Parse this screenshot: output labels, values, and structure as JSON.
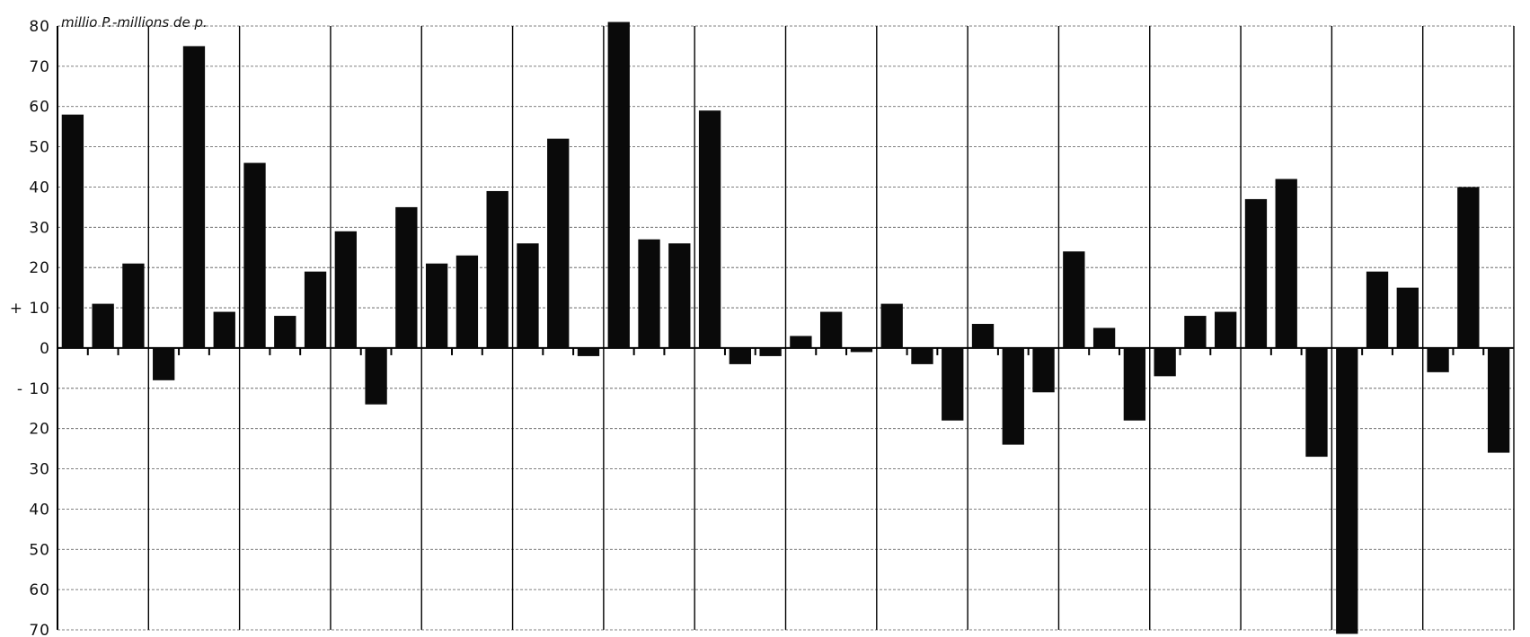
{
  "chart_data": {
    "type": "bar",
    "unit_label": "millio P.-millions de p.",
    "ylim": [
      -70,
      80
    ],
    "y_ticks": [
      {
        "value": 80,
        "label": "80"
      },
      {
        "value": 70,
        "label": "70"
      },
      {
        "value": 60,
        "label": "60"
      },
      {
        "value": 50,
        "label": "50"
      },
      {
        "value": 40,
        "label": "40"
      },
      {
        "value": 30,
        "label": "30"
      },
      {
        "value": 20,
        "label": "20"
      },
      {
        "value": 10,
        "label": "+ 10"
      },
      {
        "value": 0,
        "label": "0"
      },
      {
        "value": -10,
        "label": "- 10"
      },
      {
        "value": -20,
        "label": "20"
      },
      {
        "value": -30,
        "label": "30"
      },
      {
        "value": -40,
        "label": "40"
      },
      {
        "value": -50,
        "label": "50"
      },
      {
        "value": -60,
        "label": "60"
      },
      {
        "value": -70,
        "label": "70"
      }
    ],
    "values": [
      58,
      11,
      21,
      -8,
      75,
      9,
      46,
      8,
      19,
      29,
      -14,
      35,
      21,
      23,
      39,
      26,
      52,
      -2,
      81,
      27,
      26,
      59,
      -4,
      -2,
      3,
      9,
      -1,
      11,
      -4,
      -18,
      6,
      -24,
      -11,
      24,
      5,
      -18,
      -7,
      8,
      9,
      37,
      42,
      -27,
      -71,
      19,
      15,
      -6,
      40,
      -26
    ],
    "grid": true,
    "groups": 16,
    "bars_per_group": 3
  }
}
